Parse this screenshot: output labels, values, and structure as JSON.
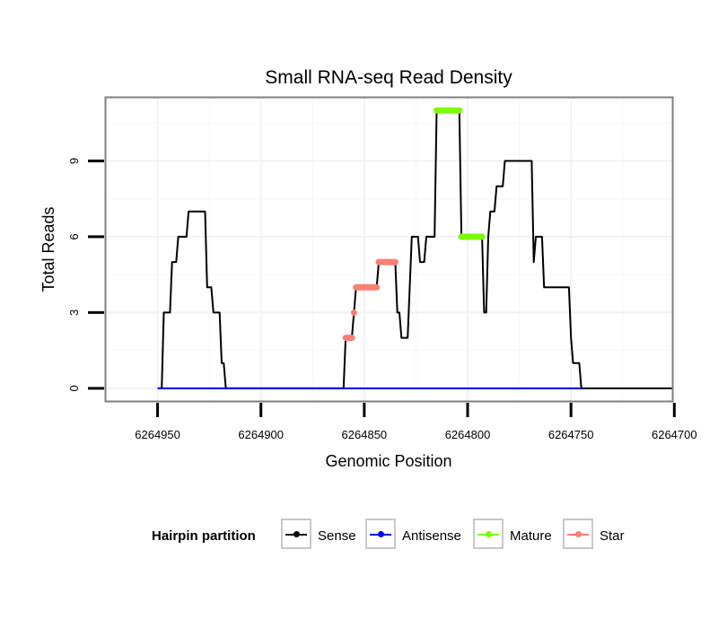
{
  "chart_data": {
    "type": "line",
    "title": "Small RNA-seq Read Density",
    "xlabel": "Genomic Position",
    "ylabel": "Total Reads",
    "xlim": [
      6264701,
      6264975
    ],
    "x_reversed": true,
    "ylim": [
      -0.5,
      11.5
    ],
    "x_ticks": [
      6264950,
      6264900,
      6264850,
      6264800,
      6264750,
      6264700
    ],
    "x_tick_labels": [
      "6264950",
      "6264900",
      "6264850",
      "6264800",
      "6264750",
      "6264700"
    ],
    "y_ticks": [
      0,
      3,
      6,
      9
    ],
    "y_tick_labels": [
      "0",
      "3",
      "6",
      "9"
    ],
    "grid": true,
    "legend": {
      "title": "Hairpin partition",
      "position": "bottom",
      "entries": [
        {
          "name": "Sense",
          "color": "#000000"
        },
        {
          "name": "Antisense",
          "color": "#0000ff"
        },
        {
          "name": "Mature",
          "color": "#7cfc00"
        },
        {
          "name": "Star",
          "color": "#fa8072"
        }
      ]
    },
    "series": [
      {
        "name": "Sense",
        "color": "#000000",
        "points": [
          [
            6264950,
            0
          ],
          [
            6264948,
            0
          ],
          [
            6264947,
            3
          ],
          [
            6264944,
            3
          ],
          [
            6264943,
            5
          ],
          [
            6264941,
            5
          ],
          [
            6264940,
            6
          ],
          [
            6264936,
            6
          ],
          [
            6264935,
            7
          ],
          [
            6264927,
            7
          ],
          [
            6264926,
            4
          ],
          [
            6264924,
            4
          ],
          [
            6264923,
            3
          ],
          [
            6264920,
            3
          ],
          [
            6264919,
            1
          ],
          [
            6264918,
            1
          ],
          [
            6264917,
            0
          ],
          [
            6264860,
            0
          ],
          [
            6264859,
            2
          ],
          [
            6264856,
            2
          ],
          [
            6264855,
            3
          ],
          [
            6264854,
            4
          ],
          [
            6264844,
            4
          ],
          [
            6264843,
            5
          ],
          [
            6264835,
            5
          ],
          [
            6264834,
            3
          ],
          [
            6264833,
            3
          ],
          [
            6264832,
            2
          ],
          [
            6264829,
            2
          ],
          [
            6264828,
            4
          ],
          [
            6264827,
            6
          ],
          [
            6264824,
            6
          ],
          [
            6264823,
            5
          ],
          [
            6264821,
            5
          ],
          [
            6264820,
            6
          ],
          [
            6264816,
            6
          ],
          [
            6264815,
            11
          ],
          [
            6264804,
            11
          ],
          [
            6264803,
            6
          ],
          [
            6264793,
            6
          ],
          [
            6264792,
            3
          ],
          [
            6264791,
            3
          ],
          [
            6264790,
            6
          ],
          [
            6264789,
            7
          ],
          [
            6264787,
            7
          ],
          [
            6264786,
            8
          ],
          [
            6264783,
            8
          ],
          [
            6264782,
            9
          ],
          [
            6264769,
            9
          ],
          [
            6264768,
            5
          ],
          [
            6264767,
            6
          ],
          [
            6264764,
            6
          ],
          [
            6264763,
            4
          ],
          [
            6264751,
            4
          ],
          [
            6264750,
            2
          ],
          [
            6264749,
            1
          ],
          [
            6264746,
            1
          ],
          [
            6264745,
            0
          ],
          [
            6264701,
            0
          ]
        ]
      },
      {
        "name": "Antisense",
        "color": "#0000ff",
        "points": [
          [
            6264950,
            0
          ],
          [
            6264745,
            0
          ]
        ]
      },
      {
        "name": "Star",
        "color": "#fa8072",
        "segments": [
          [
            [
              6264859,
              2
            ],
            [
              6264856,
              2
            ]
          ],
          [
            [
              6264855,
              3
            ],
            [
              6264855,
              3
            ]
          ],
          [
            [
              6264854,
              4
            ],
            [
              6264844,
              4
            ]
          ],
          [
            [
              6264843,
              5
            ],
            [
              6264835,
              5
            ]
          ]
        ]
      },
      {
        "name": "Mature",
        "color": "#7cfc00",
        "segments": [
          [
            [
              6264815,
              11
            ],
            [
              6264804,
              11
            ]
          ],
          [
            [
              6264803,
              6
            ],
            [
              6264793,
              6
            ]
          ]
        ]
      }
    ]
  }
}
